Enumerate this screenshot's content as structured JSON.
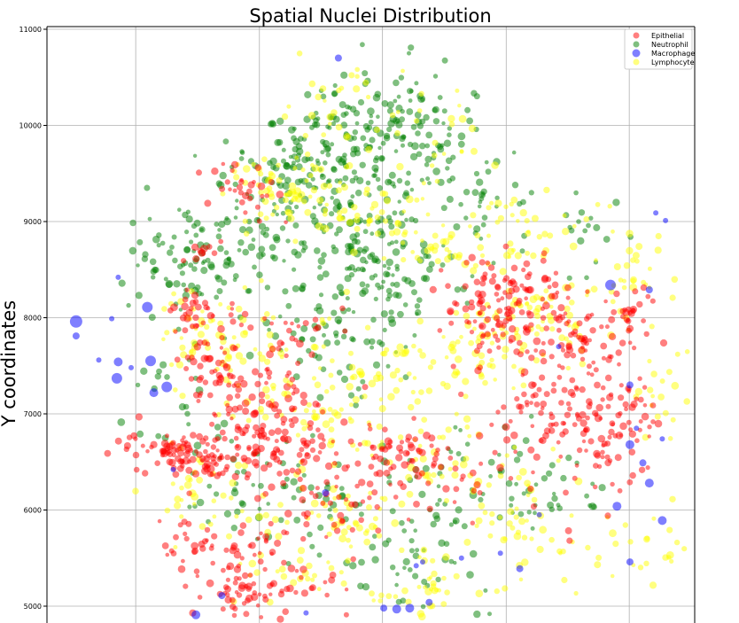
{
  "chart_data": {
    "type": "scatter",
    "title": "Spatial Nuclei Distribution",
    "xlabel": "",
    "ylabel": "Y coordinates",
    "ylim": [
      4900,
      11020
    ],
    "y_ticks": [
      5000,
      6000,
      7000,
      8000,
      9000,
      10000,
      11000
    ],
    "y_tick_labels": [
      "5000",
      "6000",
      "7000",
      "8000",
      "9000",
      "10000",
      "11000"
    ],
    "grid": true,
    "legend_position": "top-right",
    "series": [
      {
        "name": "Epithelial",
        "color": "#ff0000",
        "clusters": [
          {
            "x": 0.2,
            "y": 6610,
            "sx": 0.04,
            "sy": 110,
            "n": 55
          },
          {
            "x": 0.25,
            "y": 6500,
            "sx": 0.03,
            "sy": 90,
            "n": 30
          },
          {
            "x": 0.31,
            "y": 6800,
            "sx": 0.05,
            "sy": 220,
            "n": 70
          },
          {
            "x": 0.27,
            "y": 7350,
            "sx": 0.03,
            "sy": 200,
            "n": 45
          },
          {
            "x": 0.25,
            "y": 7900,
            "sx": 0.03,
            "sy": 150,
            "n": 30
          },
          {
            "x": 0.22,
            "y": 8050,
            "sx": 0.015,
            "sy": 80,
            "n": 15
          },
          {
            "x": 0.38,
            "y": 6550,
            "sx": 0.04,
            "sy": 220,
            "n": 50
          },
          {
            "x": 0.36,
            "y": 7200,
            "sx": 0.04,
            "sy": 180,
            "n": 30
          },
          {
            "x": 0.4,
            "y": 7850,
            "sx": 0.03,
            "sy": 120,
            "n": 20
          },
          {
            "x": 0.54,
            "y": 6550,
            "sx": 0.05,
            "sy": 180,
            "n": 60
          },
          {
            "x": 0.46,
            "y": 6050,
            "sx": 0.06,
            "sy": 250,
            "n": 40
          },
          {
            "x": 0.31,
            "y": 5600,
            "sx": 0.035,
            "sy": 180,
            "n": 40
          },
          {
            "x": 0.29,
            "y": 5100,
            "sx": 0.04,
            "sy": 120,
            "n": 35
          },
          {
            "x": 0.4,
            "y": 5150,
            "sx": 0.04,
            "sy": 120,
            "n": 25
          },
          {
            "x": 0.22,
            "y": 5600,
            "sx": 0.03,
            "sy": 200,
            "n": 25
          },
          {
            "x": 0.68,
            "y": 8000,
            "sx": 0.04,
            "sy": 300,
            "n": 90
          },
          {
            "x": 0.74,
            "y": 8300,
            "sx": 0.03,
            "sy": 200,
            "n": 40
          },
          {
            "x": 0.81,
            "y": 7800,
            "sx": 0.04,
            "sy": 250,
            "n": 70
          },
          {
            "x": 0.85,
            "y": 6850,
            "sx": 0.04,
            "sy": 350,
            "n": 100
          },
          {
            "x": 0.76,
            "y": 7050,
            "sx": 0.04,
            "sy": 200,
            "n": 50
          },
          {
            "x": 0.9,
            "y": 8050,
            "sx": 0.02,
            "sy": 150,
            "n": 25
          },
          {
            "x": 0.92,
            "y": 7000,
            "sx": 0.02,
            "sy": 150,
            "n": 15
          },
          {
            "x": 0.31,
            "y": 9350,
            "sx": 0.03,
            "sy": 150,
            "n": 30
          },
          {
            "x": 0.23,
            "y": 8650,
            "sx": 0.02,
            "sy": 80,
            "n": 10
          },
          {
            "x": 0.63,
            "y": 6350,
            "sx": 0.04,
            "sy": 150,
            "n": 20
          },
          {
            "x": 0.13,
            "y": 6700,
            "sx": 0.02,
            "sy": 80,
            "n": 8
          }
        ]
      },
      {
        "name": "Neutrophil",
        "color": "#008000",
        "clusters": [
          {
            "x": 0.5,
            "y": 9900,
            "sx": 0.07,
            "sy": 380,
            "n": 130
          },
          {
            "x": 0.39,
            "y": 9650,
            "sx": 0.06,
            "sy": 280,
            "n": 90
          },
          {
            "x": 0.47,
            "y": 9000,
            "sx": 0.06,
            "sy": 350,
            "n": 110
          },
          {
            "x": 0.52,
            "y": 8400,
            "sx": 0.06,
            "sy": 250,
            "n": 80
          },
          {
            "x": 0.23,
            "y": 8600,
            "sx": 0.05,
            "sy": 250,
            "n": 80
          },
          {
            "x": 0.3,
            "y": 8750,
            "sx": 0.05,
            "sy": 250,
            "n": 50
          },
          {
            "x": 0.44,
            "y": 7650,
            "sx": 0.06,
            "sy": 300,
            "n": 60
          },
          {
            "x": 0.67,
            "y": 9150,
            "sx": 0.06,
            "sy": 250,
            "n": 40
          },
          {
            "x": 0.6,
            "y": 9900,
            "sx": 0.05,
            "sy": 250,
            "n": 40
          },
          {
            "x": 0.35,
            "y": 6200,
            "sx": 0.08,
            "sy": 300,
            "n": 60
          },
          {
            "x": 0.62,
            "y": 6400,
            "sx": 0.08,
            "sy": 300,
            "n": 50
          },
          {
            "x": 0.55,
            "y": 5500,
            "sx": 0.08,
            "sy": 350,
            "n": 50
          },
          {
            "x": 0.78,
            "y": 6200,
            "sx": 0.05,
            "sy": 250,
            "n": 30
          },
          {
            "x": 0.2,
            "y": 7300,
            "sx": 0.04,
            "sy": 350,
            "n": 25
          },
          {
            "x": 0.85,
            "y": 8800,
            "sx": 0.03,
            "sy": 200,
            "n": 15
          }
        ]
      },
      {
        "name": "Macrophage",
        "color": "#0000ff",
        "points": [
          {
            "x": 0.045,
            "y": 7960,
            "s": 7
          },
          {
            "x": 0.045,
            "y": 7810,
            "s": 4
          },
          {
            "x": 0.1,
            "y": 7990,
            "s": 3
          },
          {
            "x": 0.11,
            "y": 8420,
            "s": 3
          },
          {
            "x": 0.155,
            "y": 8110,
            "s": 6
          },
          {
            "x": 0.16,
            "y": 7550,
            "s": 6
          },
          {
            "x": 0.08,
            "y": 7560,
            "s": 3
          },
          {
            "x": 0.11,
            "y": 7540,
            "s": 5
          },
          {
            "x": 0.108,
            "y": 7370,
            "s": 6
          },
          {
            "x": 0.165,
            "y": 7220,
            "s": 5
          },
          {
            "x": 0.185,
            "y": 7280,
            "s": 6
          },
          {
            "x": 0.13,
            "y": 7480,
            "s": 3
          },
          {
            "x": 0.195,
            "y": 6420,
            "s": 3
          },
          {
            "x": 0.45,
            "y": 10700,
            "s": 4
          },
          {
            "x": 0.94,
            "y": 9090,
            "s": 3
          },
          {
            "x": 0.955,
            "y": 9010,
            "s": 3
          },
          {
            "x": 0.87,
            "y": 8340,
            "s": 6
          },
          {
            "x": 0.93,
            "y": 8290,
            "s": 4
          },
          {
            "x": 0.9,
            "y": 7300,
            "s": 4
          },
          {
            "x": 0.91,
            "y": 6850,
            "s": 3
          },
          {
            "x": 0.95,
            "y": 6740,
            "s": 3
          },
          {
            "x": 0.9,
            "y": 6680,
            "s": 5
          },
          {
            "x": 0.92,
            "y": 6490,
            "s": 4
          },
          {
            "x": 0.93,
            "y": 6280,
            "s": 5
          },
          {
            "x": 0.95,
            "y": 5890,
            "s": 5
          },
          {
            "x": 0.88,
            "y": 6040,
            "s": 5
          },
          {
            "x": 0.9,
            "y": 5460,
            "s": 4
          },
          {
            "x": 0.73,
            "y": 5390,
            "s": 4
          },
          {
            "x": 0.7,
            "y": 5550,
            "s": 3
          },
          {
            "x": 0.64,
            "y": 5500,
            "s": 3
          },
          {
            "x": 0.58,
            "y": 5460,
            "s": 3
          },
          {
            "x": 0.57,
            "y": 5420,
            "s": 3
          },
          {
            "x": 0.43,
            "y": 6180,
            "s": 4
          },
          {
            "x": 0.27,
            "y": 5110,
            "s": 4
          },
          {
            "x": 0.23,
            "y": 4910,
            "s": 5
          },
          {
            "x": 0.4,
            "y": 4930,
            "s": 3
          },
          {
            "x": 0.52,
            "y": 4980,
            "s": 4
          },
          {
            "x": 0.54,
            "y": 4970,
            "s": 5
          },
          {
            "x": 0.56,
            "y": 4980,
            "s": 5
          },
          {
            "x": 0.59,
            "y": 5040,
            "s": 4
          },
          {
            "x": 0.76,
            "y": 5950,
            "s": 3
          },
          {
            "x": 0.79,
            "y": 7700,
            "s": 3
          }
        ]
      },
      {
        "name": "Lymphocyte",
        "color": "#ffff00",
        "clusters": [
          {
            "x": 0.41,
            "y": 9350,
            "sx": 0.05,
            "sy": 200,
            "n": 50
          },
          {
            "x": 0.34,
            "y": 9300,
            "sx": 0.04,
            "sy": 150,
            "n": 30
          },
          {
            "x": 0.45,
            "y": 10200,
            "sx": 0.04,
            "sy": 300,
            "n": 30
          },
          {
            "x": 0.55,
            "y": 9000,
            "sx": 0.05,
            "sy": 300,
            "n": 40
          },
          {
            "x": 0.62,
            "y": 8650,
            "sx": 0.04,
            "sy": 150,
            "n": 25
          },
          {
            "x": 0.73,
            "y": 8950,
            "sx": 0.06,
            "sy": 200,
            "n": 40
          },
          {
            "x": 0.89,
            "y": 8500,
            "sx": 0.03,
            "sy": 300,
            "n": 30
          },
          {
            "x": 0.78,
            "y": 8000,
            "sx": 0.04,
            "sy": 250,
            "n": 40
          },
          {
            "x": 0.67,
            "y": 7600,
            "sx": 0.05,
            "sy": 300,
            "n": 50
          },
          {
            "x": 0.52,
            "y": 7500,
            "sx": 0.07,
            "sy": 300,
            "n": 50
          },
          {
            "x": 0.41,
            "y": 7050,
            "sx": 0.05,
            "sy": 200,
            "n": 40
          },
          {
            "x": 0.33,
            "y": 7700,
            "sx": 0.05,
            "sy": 250,
            "n": 40
          },
          {
            "x": 0.25,
            "y": 7700,
            "sx": 0.04,
            "sy": 250,
            "n": 30
          },
          {
            "x": 0.56,
            "y": 6650,
            "sx": 0.06,
            "sy": 200,
            "n": 40
          },
          {
            "x": 0.47,
            "y": 5900,
            "sx": 0.05,
            "sy": 200,
            "n": 40
          },
          {
            "x": 0.57,
            "y": 5250,
            "sx": 0.05,
            "sy": 200,
            "n": 40
          },
          {
            "x": 0.69,
            "y": 6200,
            "sx": 0.05,
            "sy": 300,
            "n": 35
          },
          {
            "x": 0.78,
            "y": 5750,
            "sx": 0.06,
            "sy": 300,
            "n": 30
          },
          {
            "x": 0.92,
            "y": 5600,
            "sx": 0.03,
            "sy": 200,
            "n": 20
          },
          {
            "x": 0.94,
            "y": 7300,
            "sx": 0.02,
            "sy": 300,
            "n": 20
          },
          {
            "x": 0.3,
            "y": 6000,
            "sx": 0.06,
            "sy": 300,
            "n": 30
          },
          {
            "x": 0.22,
            "y": 6200,
            "sx": 0.03,
            "sy": 300,
            "n": 20
          },
          {
            "x": 0.37,
            "y": 5400,
            "sx": 0.04,
            "sy": 200,
            "n": 20
          },
          {
            "x": 0.2,
            "y": 8000,
            "sx": 0.02,
            "sy": 150,
            "n": 15
          },
          {
            "x": 0.62,
            "y": 10000,
            "sx": 0.04,
            "sy": 300,
            "n": 20
          },
          {
            "x": 0.72,
            "y": 8000,
            "sx": 0.03,
            "sy": 200,
            "n": 20
          }
        ]
      }
    ],
    "legend": [
      {
        "label": "Epithelial",
        "color": "#ff0000"
      },
      {
        "label": "Neutrophil",
        "color": "#008000"
      },
      {
        "label": "Macrophage",
        "color": "#0000ff"
      },
      {
        "label": "Lymphocyte",
        "color": "#ffff00"
      }
    ]
  }
}
